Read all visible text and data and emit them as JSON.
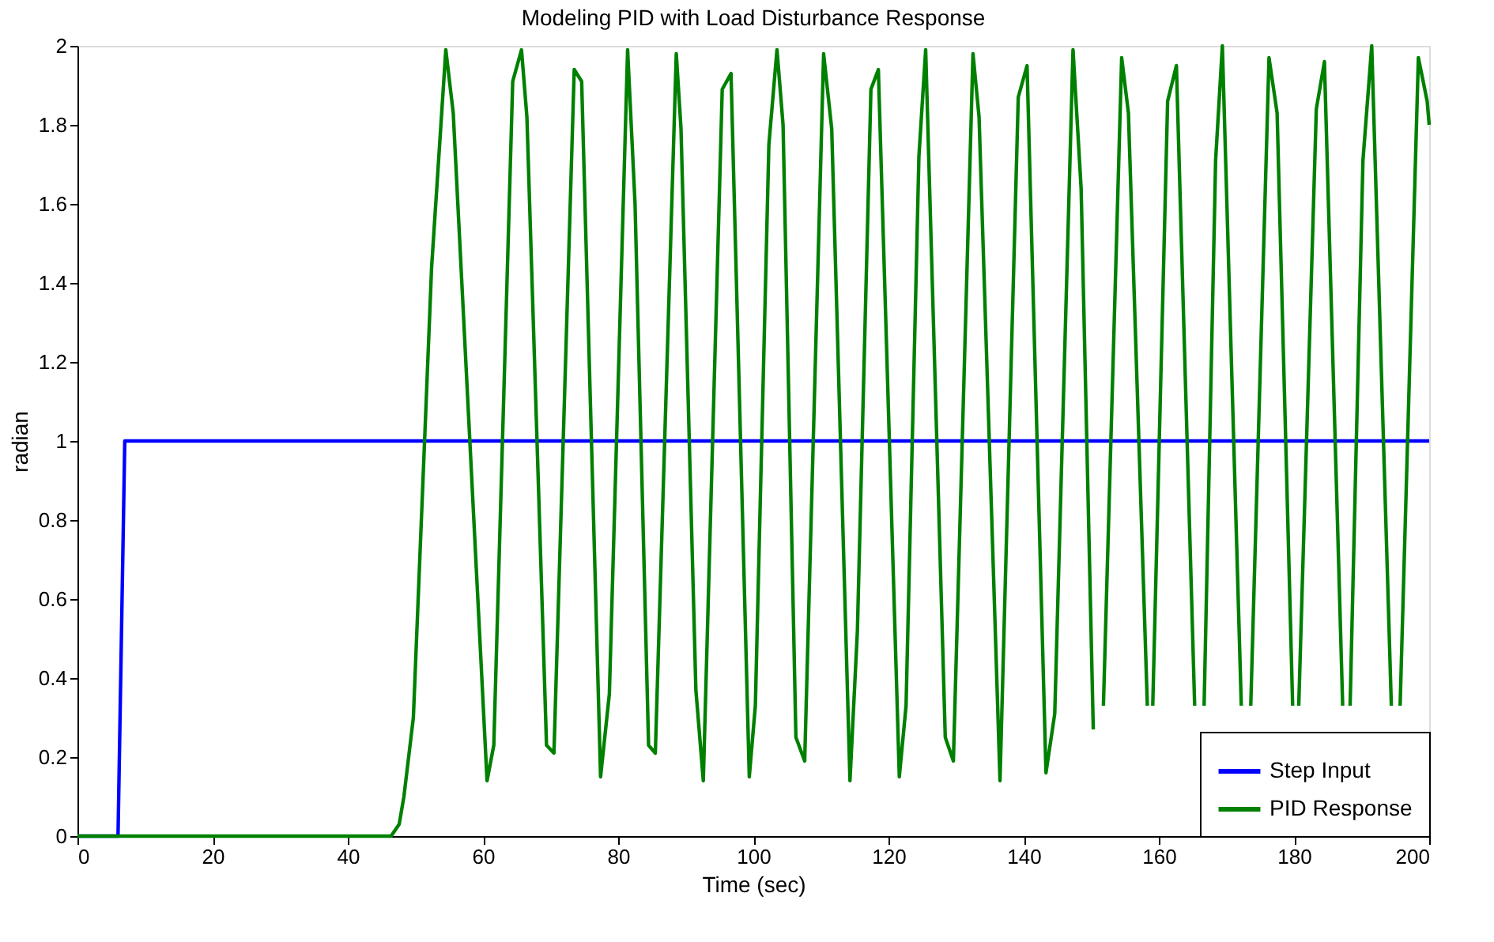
{
  "chart_data": {
    "type": "line",
    "title": "Modeling PID with Load Disturbance Response",
    "xlabel": "Time (sec)",
    "ylabel": "radian",
    "xlim": [
      0,
      200
    ],
    "xticks": [
      0,
      20,
      40,
      60,
      80,
      100,
      120,
      140,
      160,
      180,
      200
    ],
    "ylim": [
      0,
      2
    ],
    "yticks": [
      0,
      0.2,
      0.4,
      0.6,
      0.8,
      1,
      1.2,
      1.4,
      1.6,
      1.8,
      2
    ],
    "grid": false,
    "legend": "bottom right",
    "line_style": "solid",
    "series": [
      {
        "name": "Step Input",
        "color": "#0000ff",
        "x": [
          0,
          6,
          7,
          200
        ],
        "values": [
          0,
          0,
          1,
          1
        ]
      },
      {
        "name": "PID Response",
        "color": "#008000",
        "x": [
          0,
          46.4,
          47.6,
          48.3,
          49.7,
          52.4,
          54.5,
          55.6,
          60.6,
          61.6,
          64.4,
          65.7,
          66.5,
          69.4,
          70.5,
          73.5,
          74.6,
          77.4,
          78.7,
          81.4,
          82.5,
          84.5,
          85.5,
          88.6,
          89.3,
          91.5,
          92.6,
          95.4,
          96.7,
          99.4,
          100.3,
          102.3,
          103.5,
          104.4,
          106.3,
          107.6,
          110.4,
          111.6,
          114.3,
          115.4,
          117.4,
          118.5,
          121.6,
          122.6,
          124.5,
          125.5,
          128.4,
          129.6,
          132.5,
          133.4,
          136.5,
          139.2,
          140.5,
          143.3,
          144.6,
          147.3,
          148.5,
          150.3,
          151,
          151.8,
          154.5,
          155.5,
          158.3,
          158.7,
          159.1,
          161.3,
          162.6,
          165.3,
          166,
          166.7,
          168.4,
          169.4,
          172.2,
          172.9,
          173.6,
          176.3,
          177.5,
          179.8,
          180.2,
          180.7,
          183.3,
          184.5,
          187.2,
          187.7,
          188.3,
          190.2,
          191.5,
          194.4,
          195,
          195.7,
          198.4,
          199.7,
          200
        ],
        "values": [
          0,
          0,
          0.03,
          0.1,
          0.3,
          1.44,
          1.99,
          1.83,
          0.14,
          0.23,
          1.91,
          1.99,
          1.82,
          0.23,
          0.21,
          1.94,
          1.91,
          0.15,
          0.36,
          1.99,
          1.6,
          0.23,
          0.21,
          1.98,
          1.79,
          0.37,
          0.14,
          1.89,
          1.93,
          0.15,
          0.33,
          1.75,
          1.99,
          1.8,
          0.25,
          0.19,
          1.98,
          1.79,
          0.14,
          0.52,
          1.89,
          1.94,
          0.15,
          0.33,
          1.72,
          1.99,
          0.25,
          0.19,
          1.98,
          1.82,
          0.14,
          1.87,
          1.95,
          0.16,
          0.31,
          1.99,
          1.64,
          0.27,
          null,
          0.33,
          1.97,
          1.83,
          0.33,
          null,
          0.33,
          1.86,
          1.95,
          0.33,
          null,
          0.33,
          1.71,
          2.0,
          0.33,
          null,
          0.33,
          1.97,
          1.83,
          0.33,
          null,
          0.33,
          1.84,
          1.96,
          0.33,
          null,
          0.33,
          1.71,
          2.0,
          0.33,
          null,
          0.33,
          1.97,
          1.86,
          1.8
        ]
      }
    ]
  }
}
